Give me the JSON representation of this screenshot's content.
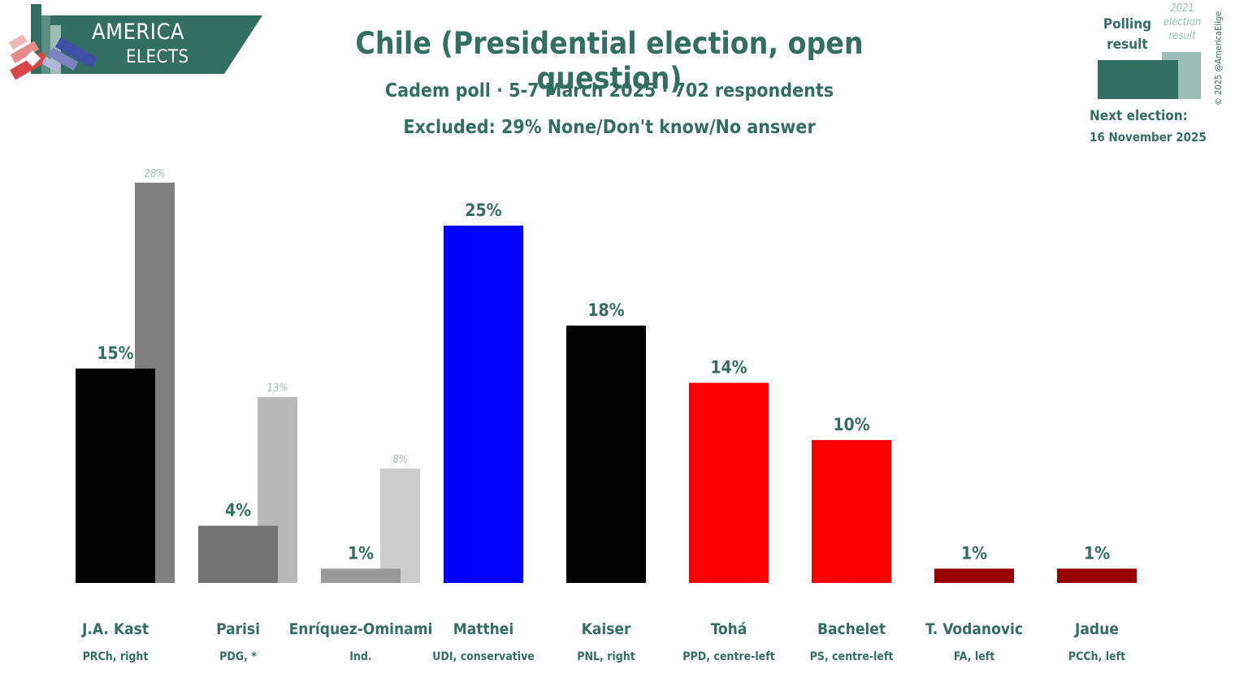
{
  "brand": {
    "line1": "AMERICA",
    "line2": "ELECTS"
  },
  "header": {
    "title": "Chile (Presidential election, open question)",
    "subtitle": "Cadem poll · 5-7 March 2025 · 702 respondents",
    "note": "Excluded: 29% None/Don't know/No answer"
  },
  "legend": {
    "poll_label": "Polling result",
    "prev_label": "2021 election result",
    "poll_color": "#336f60",
    "prev_color": "#9cbdb4"
  },
  "copyright": "© 2025 @AmericaElige",
  "next_election": {
    "label": "Next election:",
    "date": "16 November 2025"
  },
  "chart_data": {
    "type": "bar",
    "categories": [
      "J.A. Kast",
      "Parisi",
      "Enríquez-Ominami",
      "Matthei",
      "Kaiser",
      "Tohá",
      "Bachelet",
      "T. Vodanovic",
      "Jadue"
    ],
    "parties": [
      "PRCh, right",
      "PDG, *",
      "Ind.",
      "UDI, conservative",
      "PNL, right",
      "PPD, centre-left",
      "PS, centre-left",
      "FA, left",
      "PCCh, left"
    ],
    "series": [
      {
        "name": "Polling result",
        "values": [
          15,
          4,
          1,
          25,
          18,
          14,
          10,
          1,
          1
        ],
        "labels": [
          "15%",
          "4%",
          "1%",
          "25%",
          "18%",
          "14%",
          "10%",
          "1%",
          "1%"
        ],
        "colors": [
          "#000000",
          "#727272",
          "#999999",
          "#0000ff",
          "#000000",
          "#ff0000",
          "#ff0000",
          "#990000",
          "#990000"
        ]
      },
      {
        "name": "2021 election result",
        "values": [
          28,
          13,
          8,
          null,
          null,
          null,
          null,
          null,
          null
        ],
        "labels": [
          "28%",
          "13%",
          "8%",
          null,
          null,
          null,
          null,
          null,
          null
        ],
        "colors": [
          "#808080",
          "#b8b8b8",
          "#cccccc",
          null,
          null,
          null,
          null,
          null,
          null
        ]
      }
    ],
    "ylim": [
      0,
      28
    ],
    "grid": false,
    "text_color": "#336f60"
  }
}
